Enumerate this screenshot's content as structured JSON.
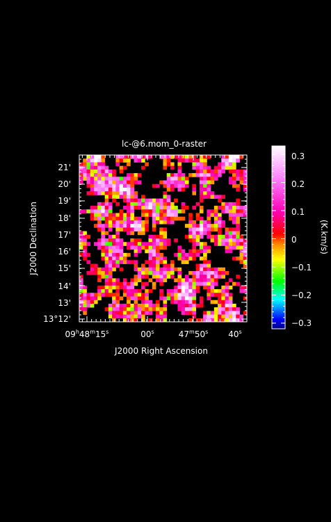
{
  "chart_data": {
    "type": "heatmap",
    "title": "lc-@6.mom_0-raster",
    "xlabel": "J2000 Right Ascension",
    "ylabel": "J2000 Declination",
    "x_ticks": [
      {
        "h": "09",
        "hs": "h",
        "m": "48",
        "ms": "m",
        "s": "15",
        "ss": "s"
      },
      {
        "h": "",
        "hs": "",
        "m": "",
        "ms": "",
        "s": "00",
        "ss": "s"
      },
      {
        "h": "",
        "hs": "",
        "m": "47",
        "ms": "m",
        "s": "50",
        "ss": "s"
      },
      {
        "h": "",
        "hs": "",
        "m": "",
        "ms": "",
        "s": "40",
        "ss": "s"
      }
    ],
    "y_ticks": [
      "13°12'",
      "13'",
      "14'",
      "15'",
      "16'",
      "17'",
      "18'",
      "19'",
      "20'",
      "21'"
    ],
    "colorbar": {
      "label": "(K.km/s)",
      "range": [
        -0.32,
        0.33
      ],
      "ticks": [
        "0.3",
        "0.2",
        "0.1",
        "0",
        "−0.1",
        "−0.2",
        "−0.3"
      ],
      "tick_values": [
        0.3,
        0.2,
        0.1,
        0,
        -0.1,
        -0.2,
        -0.3
      ]
    },
    "colormap": [
      "#000080",
      "#0000ff",
      "#00ffff",
      "#00ff00",
      "#ffff00",
      "#ff8c00",
      "#ff0000",
      "#ff00b4",
      "#ff80ff",
      "#ffffff"
    ],
    "grid": false
  }
}
